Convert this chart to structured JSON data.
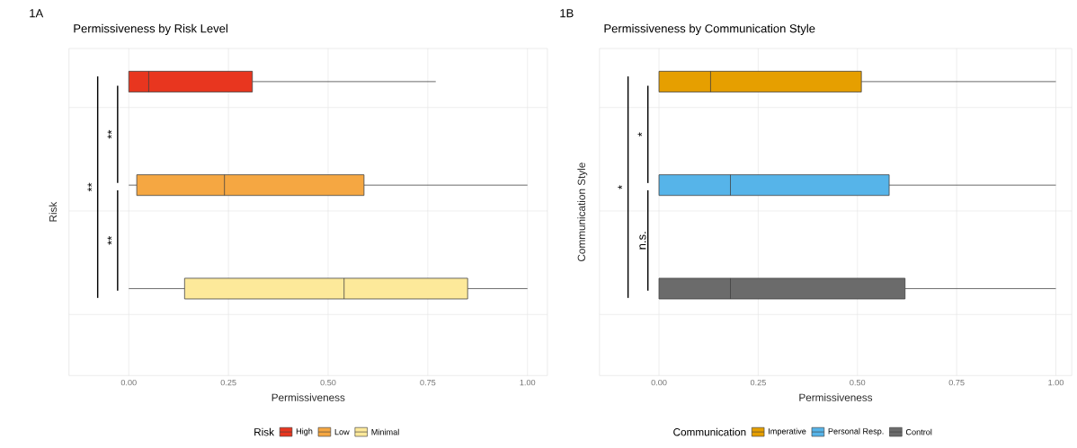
{
  "chart_data": [
    {
      "type": "box",
      "orientation": "horizontal",
      "title": "Permissiveness by Risk Level",
      "xlabel": "Permissiveness",
      "ylabel": "Risk",
      "legend_title": "Risk",
      "legend": "bottom",
      "grid": true,
      "tick_labels": "x",
      "categories": [
        null,
        null,
        null
      ],
      "series": [
        {
          "name": "High",
          "color": "#e8361f",
          "boxes": [
            {
              "low": 0,
              "q1": 0,
              "median": 0.05,
              "q3": 0.31,
              "high": 0.77
            },
            null,
            null
          ]
        },
        {
          "name": "Low",
          "color": "#f5a742",
          "boxes": [
            null,
            {
              "low": 0,
              "q1": 0.02,
              "median": 0.24,
              "q3": 0.59,
              "high": 1
            },
            null
          ]
        },
        {
          "name": "Minimal",
          "color": "#fde99a",
          "boxes": [
            null,
            null,
            {
              "low": 0,
              "q1": 0.14,
              "median": 0.54,
              "q3": 0.85,
              "high": 1
            }
          ]
        }
      ],
      "xlim": [
        -0.15,
        1.05
      ],
      "xticks": [
        {
          "value": 0,
          "label": "0.00"
        },
        {
          "value": 0.25,
          "label": "0.25"
        },
        {
          "value": 0.5,
          "label": "0.50"
        },
        {
          "value": 0.75,
          "label": "0.75"
        },
        {
          "value": 1,
          "label": "1.00"
        }
      ],
      "annotations": [
        "1A",
        "**",
        "**",
        "**"
      ]
    },
    {
      "type": "box",
      "orientation": "horizontal",
      "title": "Permissiveness by Communication Style",
      "xlabel": "Permissiveness",
      "ylabel": "Communication Style",
      "legend_title": "Communication",
      "legend": "bottom",
      "grid": true,
      "tick_labels": "x",
      "categories": [
        null,
        null,
        null
      ],
      "series": [
        {
          "name": "Imperative",
          "color": "#e69f00",
          "boxes": [
            {
              "low": 0,
              "q1": 0,
              "median": 0.13,
              "q3": 0.51,
              "high": 1
            },
            null,
            null
          ]
        },
        {
          "name": "Personal Resp.",
          "color": "#56b4e9",
          "boxes": [
            null,
            {
              "low": 0,
              "q1": 0,
              "median": 0.18,
              "q3": 0.58,
              "high": 1
            },
            null
          ]
        },
        {
          "name": "Control",
          "color": "#6b6b6b",
          "boxes": [
            null,
            null,
            {
              "low": 0,
              "q1": 0,
              "median": 0.18,
              "q3": 0.62,
              "high": 1
            }
          ]
        }
      ],
      "xlim": [
        -0.15,
        1.04
      ],
      "xticks": [
        {
          "value": 0,
          "label": "0.00"
        },
        {
          "value": 0.25,
          "label": "0.25"
        },
        {
          "value": 0.5,
          "label": "0.50"
        },
        {
          "value": 0.75,
          "label": "0.75"
        },
        {
          "value": 1,
          "label": "1.00"
        }
      ],
      "annotations": [
        "1B",
        "*",
        "n.s.",
        "*"
      ]
    }
  ]
}
